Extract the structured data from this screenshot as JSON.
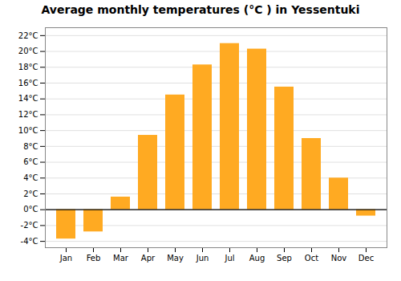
{
  "chart_data": {
    "type": "bar",
    "title": "Average monthly temperatures (°C ) in Yessentuki",
    "categories": [
      "Jan",
      "Feb",
      "Mar",
      "Apr",
      "May",
      "Jun",
      "Jul",
      "Aug",
      "Sep",
      "Oct",
      "Nov",
      "Dec"
    ],
    "values": [
      -3.7,
      -2.8,
      1.6,
      9.4,
      14.5,
      18.3,
      21.0,
      20.3,
      15.5,
      9.0,
      4.0,
      -0.8
    ],
    "color": "#FFAA22",
    "ylim": [
      -4.8,
      23.0
    ],
    "yticks": [
      {
        "value": -4,
        "label": "-4°C"
      },
      {
        "value": -2,
        "label": "-2°C"
      },
      {
        "value": 0,
        "label": "0°C"
      },
      {
        "value": 2,
        "label": "2°C"
      },
      {
        "value": 4,
        "label": "4°C"
      },
      {
        "value": 6,
        "label": "6°C"
      },
      {
        "value": 8,
        "label": "8°C"
      },
      {
        "value": 10,
        "label": "10°C"
      },
      {
        "value": 12,
        "label": "12°C"
      },
      {
        "value": 14,
        "label": "14°C"
      },
      {
        "value": 16,
        "label": "16°C"
      },
      {
        "value": 18,
        "label": "18°C"
      },
      {
        "value": 20,
        "label": "20°C"
      },
      {
        "value": 22,
        "label": "22°C"
      }
    ],
    "grid": true
  }
}
